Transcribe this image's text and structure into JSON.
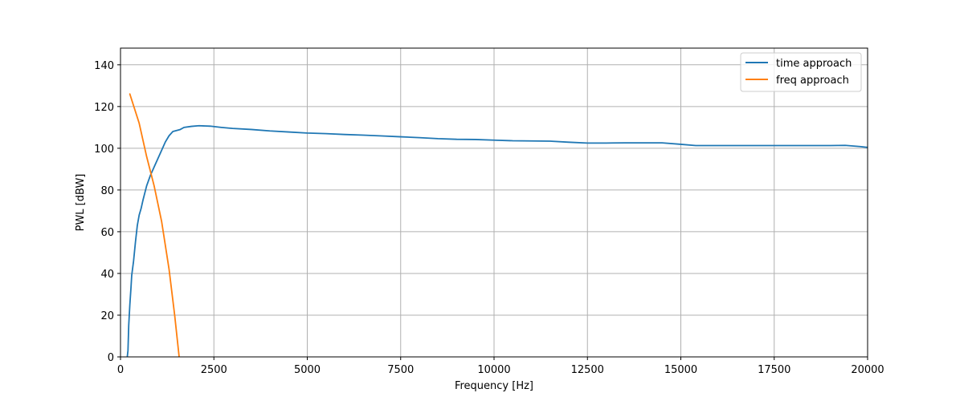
{
  "chart_data": {
    "type": "line",
    "title": "",
    "xlabel": "Frequency [Hz]",
    "ylabel": "PWL [dBW]",
    "xlim": [
      0,
      20000
    ],
    "ylim": [
      0,
      148
    ],
    "xticks": [
      0,
      2500,
      5000,
      7500,
      10000,
      12500,
      15000,
      17500,
      20000
    ],
    "yticks": [
      0,
      20,
      40,
      60,
      80,
      100,
      120,
      140
    ],
    "grid": true,
    "legend_position": "top-right",
    "series": [
      {
        "name": "time approach",
        "color": "#1f77b4",
        "points": [
          [
            0,
            -5
          ],
          [
            50,
            -5
          ],
          [
            100,
            -5
          ],
          [
            150,
            -5
          ],
          [
            200,
            3
          ],
          [
            220,
            15
          ],
          [
            250,
            25
          ],
          [
            280,
            33
          ],
          [
            300,
            39
          ],
          [
            350,
            46
          ],
          [
            400,
            55
          ],
          [
            450,
            63
          ],
          [
            500,
            68
          ],
          [
            550,
            71
          ],
          [
            600,
            75
          ],
          [
            700,
            82
          ],
          [
            800,
            87
          ],
          [
            900,
            91
          ],
          [
            1000,
            95
          ],
          [
            1100,
            99
          ],
          [
            1200,
            103
          ],
          [
            1300,
            106
          ],
          [
            1400,
            108
          ],
          [
            1500,
            108.5
          ],
          [
            1600,
            109
          ],
          [
            1700,
            110
          ],
          [
            1900,
            110.5
          ],
          [
            2100,
            110.8
          ],
          [
            2400,
            110.6
          ],
          [
            2700,
            110.0
          ],
          [
            3000,
            109.5
          ],
          [
            3500,
            109.0
          ],
          [
            4000,
            108.3
          ],
          [
            4500,
            107.8
          ],
          [
            5000,
            107.3
          ],
          [
            5500,
            107.0
          ],
          [
            6000,
            106.6
          ],
          [
            6500,
            106.3
          ],
          [
            7000,
            105.9
          ],
          [
            7500,
            105.5
          ],
          [
            8000,
            105.1
          ],
          [
            8500,
            104.6
          ],
          [
            9000,
            104.3
          ],
          [
            9500,
            104.2
          ],
          [
            10000,
            103.9
          ],
          [
            10500,
            103.6
          ],
          [
            11000,
            103.5
          ],
          [
            11500,
            103.4
          ],
          [
            12000,
            102.9
          ],
          [
            12500,
            102.5
          ],
          [
            13000,
            102.5
          ],
          [
            13500,
            102.6
          ],
          [
            14000,
            102.6
          ],
          [
            14500,
            102.6
          ],
          [
            15000,
            101.9
          ],
          [
            15400,
            101.3
          ],
          [
            16000,
            101.3
          ],
          [
            17000,
            101.3
          ],
          [
            18000,
            101.3
          ],
          [
            19000,
            101.3
          ],
          [
            19400,
            101.4
          ],
          [
            19800,
            100.8
          ],
          [
            20000,
            100.4
          ]
        ]
      },
      {
        "name": "freq approach",
        "color": "#ff7f0e",
        "points": [
          [
            250,
            126
          ],
          [
            500,
            112
          ],
          [
            700,
            96
          ],
          [
            900,
            82
          ],
          [
            1100,
            65
          ],
          [
            1300,
            42
          ],
          [
            1450,
            20
          ],
          [
            1570,
            0
          ]
        ]
      }
    ]
  }
}
